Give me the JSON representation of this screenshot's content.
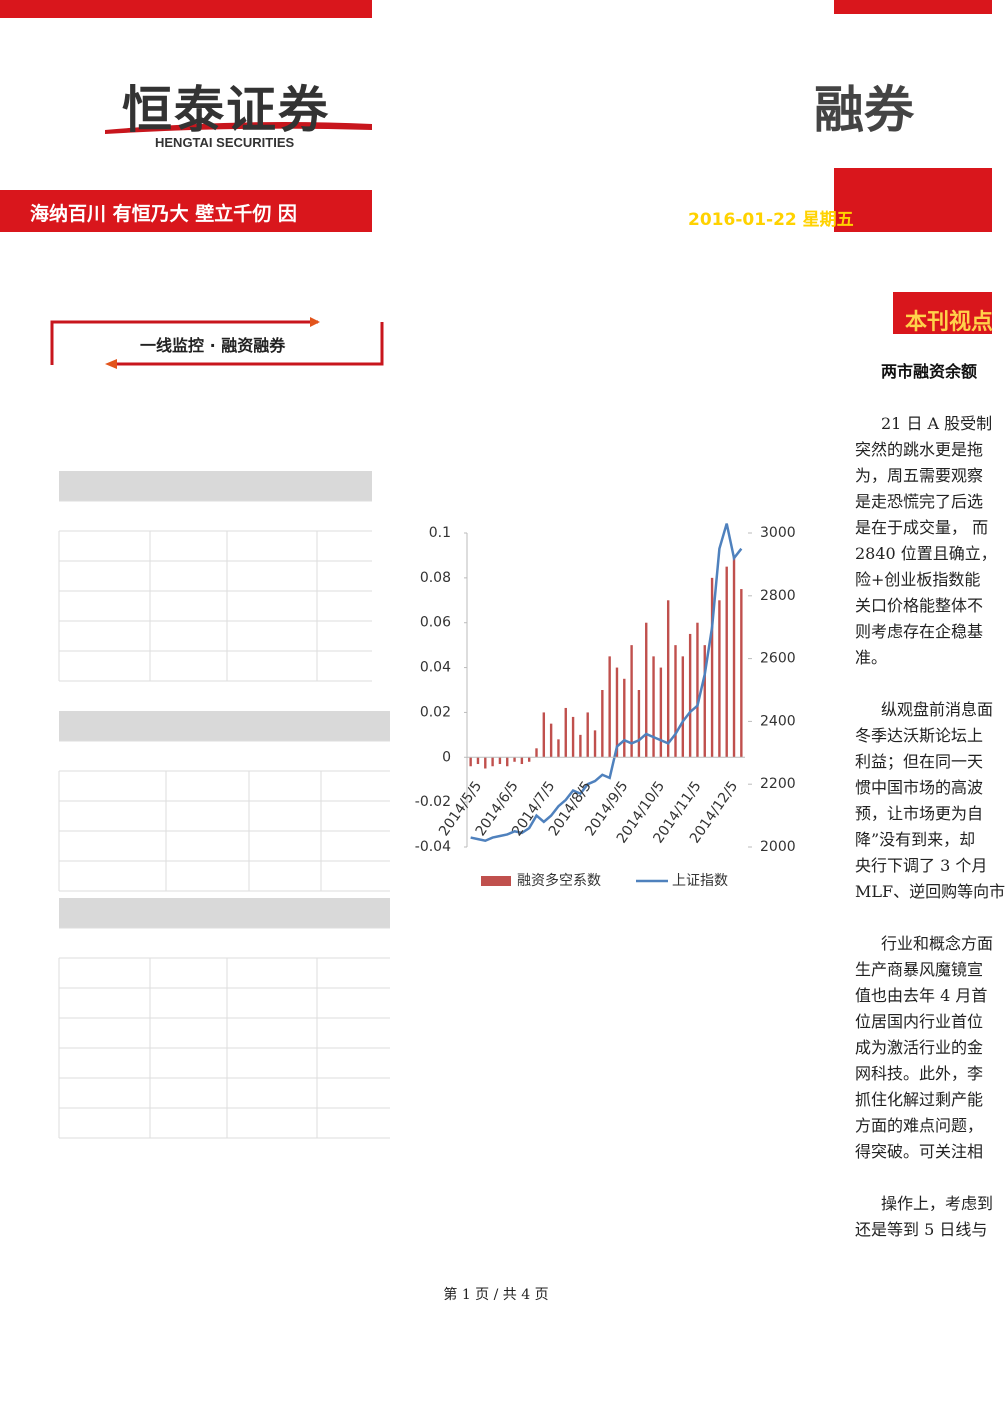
{
  "header": {
    "logo_cn": "恒泰证券",
    "logo_en": "HENGTAI SECURITIES",
    "slogan": "海纳百川 有恒乃大  壁立千仞 因",
    "brand_right": "融券",
    "date": "2016-01-22 星期五"
  },
  "section": {
    "title": "一线监控 · 融资融券"
  },
  "viewpoint": {
    "label": "本刊视点",
    "headline": "两市融资余额",
    "paragraphs": [
      [
        "21 日 A 股受制",
        "突然的跳水更是拖",
        "为，周五需要观察",
        "是走恐慌完了后选",
        "是在于成交量， 而",
        "2840 位置且确立，",
        "险+创业板指数能",
        "关口价格能整体不",
        "则考虑存在企稳基",
        "准。"
      ],
      [
        "纵观盘前消息面",
        "冬季达沃斯论坛上",
        "利益；但在同一天",
        "惯中国市场的高波",
        "预，让市场更为自",
        "降”没有到来，却",
        "央行下调了 3 个月",
        "MLF、逆回购等向市"
      ],
      [
        "行业和概念方面",
        "生产商暴风魔镜宣",
        "值也由去年 4 月首",
        "位居国内行业首位",
        "成为激活行业的金",
        "网科技。此外，李",
        "抓住化解过剩产能",
        "方面的难点问题，",
        "得突破。可关注相"
      ],
      [
        "操作上，考虑到",
        "还是等到 5 日线与"
      ]
    ]
  },
  "footer": {
    "page": "第 1 页 / 共 4 页"
  },
  "chart_data": {
    "type": "combo",
    "categories": [
      "2014/5/5",
      null,
      null,
      null,
      null,
      "2014/6/5",
      null,
      null,
      null,
      null,
      "2014/7/5",
      null,
      null,
      null,
      null,
      "2014/8/5",
      null,
      null,
      null,
      null,
      "2014/9/5",
      null,
      null,
      null,
      null,
      "2014/10/5",
      null,
      null,
      null,
      null,
      "2014/11/5",
      null,
      null,
      null,
      null,
      "2014/12/5",
      null,
      null
    ],
    "series": [
      {
        "name": "融资多空系数",
        "type": "bar",
        "color": "#c0504d",
        "values": [
          -0.004,
          -0.003,
          -0.005,
          -0.004,
          -0.003,
          -0.004,
          -0.002,
          -0.003,
          -0.002,
          0.004,
          0.02,
          0.015,
          0.008,
          0.022,
          0.018,
          0.01,
          0.02,
          0.012,
          0.03,
          0.045,
          0.04,
          0.035,
          0.05,
          0.03,
          0.06,
          0.045,
          0.04,
          0.07,
          0.05,
          0.045,
          0.055,
          0.06,
          0.05,
          0.08,
          0.07,
          0.085,
          0.09,
          0.075
        ]
      },
      {
        "name": "上证指数",
        "type": "line",
        "axis": "y2",
        "color": "#4f81bd",
        "values": [
          2030,
          2025,
          2020,
          2030,
          2035,
          2040,
          2050,
          2045,
          2060,
          2100,
          2080,
          2100,
          2130,
          2150,
          2180,
          2170,
          2200,
          2210,
          2230,
          2220,
          2320,
          2340,
          2330,
          2340,
          2360,
          2350,
          2340,
          2330,
          2360,
          2400,
          2430,
          2450,
          2550,
          2700,
          2950,
          3030,
          2920,
          2950
        ]
      }
    ],
    "ylim": [
      -0.04,
      0.1
    ],
    "yticks": [
      0.1,
      0.08,
      0.06,
      0.04,
      0.02,
      0,
      -0.02,
      -0.04
    ],
    "y2lim": [
      2000,
      3000
    ],
    "y2ticks": [
      3000,
      2800,
      2600,
      2400,
      2200,
      2000
    ]
  }
}
